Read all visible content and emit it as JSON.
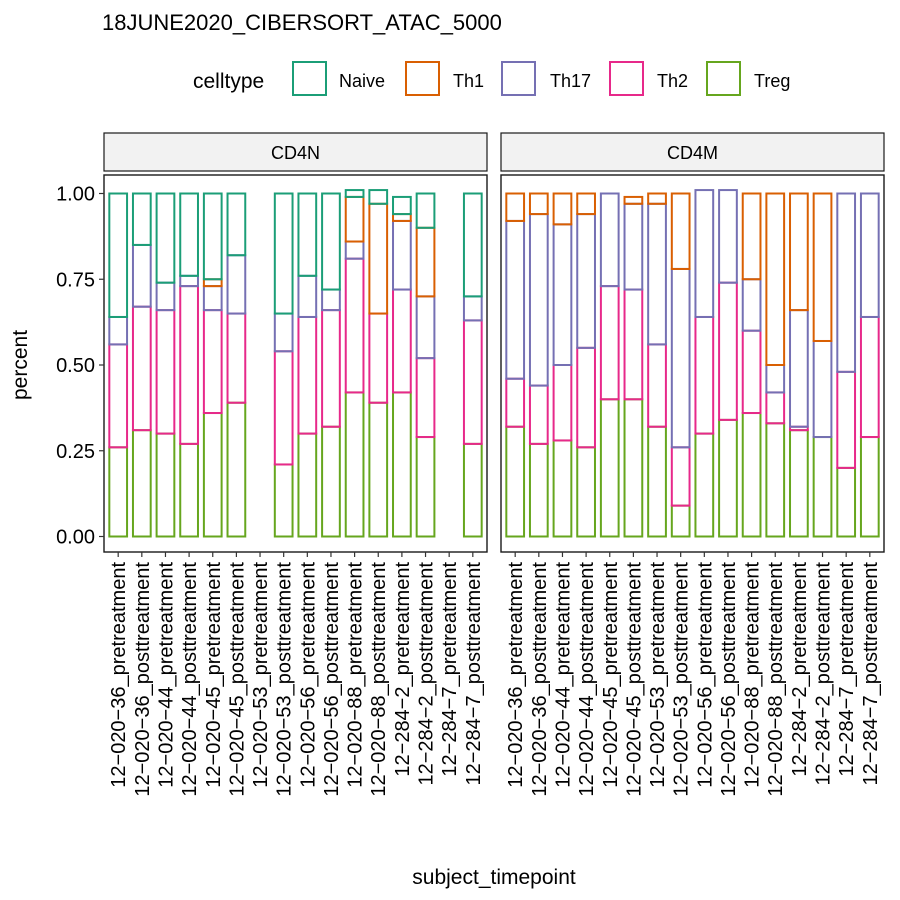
{
  "chart_data": {
    "type": "bar",
    "stacked": true,
    "title": "18JUNE2020_CIBERSORT_ATAC_5000",
    "xlabel": "subject_timepoint",
    "ylabel": "percent",
    "ylim": [
      0,
      1
    ],
    "yticks": [
      "0.00",
      "0.25",
      "0.50",
      "0.75",
      "1.00"
    ],
    "legend": {
      "title": "celltype",
      "placement": "top",
      "entries": [
        {
          "name": "Naive",
          "color": "#1b9e77"
        },
        {
          "name": "Th1",
          "color": "#d95f02"
        },
        {
          "name": "Th17",
          "color": "#7570b3"
        },
        {
          "name": "Th2",
          "color": "#e7298a"
        },
        {
          "name": "Treg",
          "color": "#66a61e"
        }
      ]
    },
    "stack_order_bottom_to_top": [
      "Treg",
      "Th2",
      "Th17",
      "Th1",
      "Naive"
    ],
    "categories": [
      "12−020−36_pretreatment",
      "12−020−36_posttreatment",
      "12−020−44_pretreatment",
      "12−020−44_posttreatment",
      "12−020−45_pretreatment",
      "12−020−45_posttreatment",
      "12−020−53_pretreatment",
      "12−020−53_posttreatment",
      "12−020−56_pretreatment",
      "12−020−56_posttreatment",
      "12−020−88_pretreatment",
      "12−020−88_posttreatment",
      "12−284−2_pretreatment",
      "12−284−2_posttreatment",
      "12−284−7_pretreatment",
      "12−284−7_posttreatment"
    ],
    "panels": [
      {
        "name": "CD4N",
        "values": [
          {
            "Treg": 0.26,
            "Th2": 0.3,
            "Th17": 0.08,
            "Th1": 0.0,
            "Naive": 0.36
          },
          {
            "Treg": 0.31,
            "Th2": 0.36,
            "Th17": 0.18,
            "Th1": 0.0,
            "Naive": 0.15
          },
          {
            "Treg": 0.3,
            "Th2": 0.36,
            "Th17": 0.08,
            "Th1": 0.0,
            "Naive": 0.26
          },
          {
            "Treg": 0.27,
            "Th2": 0.46,
            "Th17": 0.03,
            "Th1": 0.0,
            "Naive": 0.24
          },
          {
            "Treg": 0.36,
            "Th2": 0.3,
            "Th17": 0.07,
            "Th1": 0.02,
            "Naive": 0.25
          },
          {
            "Treg": 0.39,
            "Th2": 0.26,
            "Th17": 0.17,
            "Th1": 0.0,
            "Naive": 0.18
          },
          null,
          {
            "Treg": 0.21,
            "Th2": 0.33,
            "Th17": 0.11,
            "Th1": 0.0,
            "Naive": 0.35
          },
          {
            "Treg": 0.3,
            "Th2": 0.34,
            "Th17": 0.12,
            "Th1": 0.0,
            "Naive": 0.24
          },
          {
            "Treg": 0.32,
            "Th2": 0.34,
            "Th17": 0.06,
            "Th1": 0.0,
            "Naive": 0.28
          },
          {
            "Treg": 0.42,
            "Th2": 0.39,
            "Th17": 0.05,
            "Th1": 0.13,
            "Naive": 0.02
          },
          {
            "Treg": 0.39,
            "Th2": 0.26,
            "Th17": 0.0,
            "Th1": 0.32,
            "Naive": 0.04
          },
          {
            "Treg": 0.42,
            "Th2": 0.3,
            "Th17": 0.2,
            "Th1": 0.02,
            "Naive": 0.05
          },
          {
            "Treg": 0.29,
            "Th2": 0.23,
            "Th17": 0.18,
            "Th1": 0.2,
            "Naive": 0.1
          },
          null,
          {
            "Treg": 0.27,
            "Th2": 0.36,
            "Th17": 0.07,
            "Th1": 0.0,
            "Naive": 0.3
          }
        ]
      },
      {
        "name": "CD4M",
        "values": [
          {
            "Treg": 0.32,
            "Th2": 0.14,
            "Th17": 0.46,
            "Th1": 0.08,
            "Naive": 0.0
          },
          {
            "Treg": 0.27,
            "Th2": 0.17,
            "Th17": 0.5,
            "Th1": 0.06,
            "Naive": 0.0
          },
          {
            "Treg": 0.28,
            "Th2": 0.22,
            "Th17": 0.41,
            "Th1": 0.09,
            "Naive": 0.0
          },
          {
            "Treg": 0.26,
            "Th2": 0.29,
            "Th17": 0.39,
            "Th1": 0.06,
            "Naive": 0.0
          },
          {
            "Treg": 0.4,
            "Th2": 0.33,
            "Th17": 0.27,
            "Th1": 0.0,
            "Naive": 0.0
          },
          {
            "Treg": 0.4,
            "Th2": 0.32,
            "Th17": 0.25,
            "Th1": 0.02,
            "Naive": 0.0
          },
          {
            "Treg": 0.32,
            "Th2": 0.24,
            "Th17": 0.41,
            "Th1": 0.03,
            "Naive": 0.0
          },
          {
            "Treg": 0.09,
            "Th2": 0.17,
            "Th17": 0.52,
            "Th1": 0.22,
            "Naive": 0.0
          },
          {
            "Treg": 0.3,
            "Th2": 0.34,
            "Th17": 0.37,
            "Th1": 0.0,
            "Naive": 0.0
          },
          {
            "Treg": 0.34,
            "Th2": 0.4,
            "Th17": 0.27,
            "Th1": 0.0,
            "Naive": 0.0
          },
          {
            "Treg": 0.36,
            "Th2": 0.24,
            "Th17": 0.15,
            "Th1": 0.25,
            "Naive": 0.0
          },
          {
            "Treg": 0.33,
            "Th2": 0.09,
            "Th17": 0.08,
            "Th1": 0.5,
            "Naive": 0.0
          },
          {
            "Treg": 0.31,
            "Th2": 0.01,
            "Th17": 0.34,
            "Th1": 0.34,
            "Naive": 0.0
          },
          {
            "Treg": 0.29,
            "Th2": 0.0,
            "Th17": 0.28,
            "Th1": 0.43,
            "Naive": 0.0
          },
          {
            "Treg": 0.2,
            "Th2": 0.28,
            "Th17": 0.52,
            "Th1": 0.0,
            "Naive": 0.0
          },
          {
            "Treg": 0.29,
            "Th2": 0.35,
            "Th17": 0.36,
            "Th1": 0.0,
            "Naive": 0.0
          }
        ]
      }
    ]
  }
}
